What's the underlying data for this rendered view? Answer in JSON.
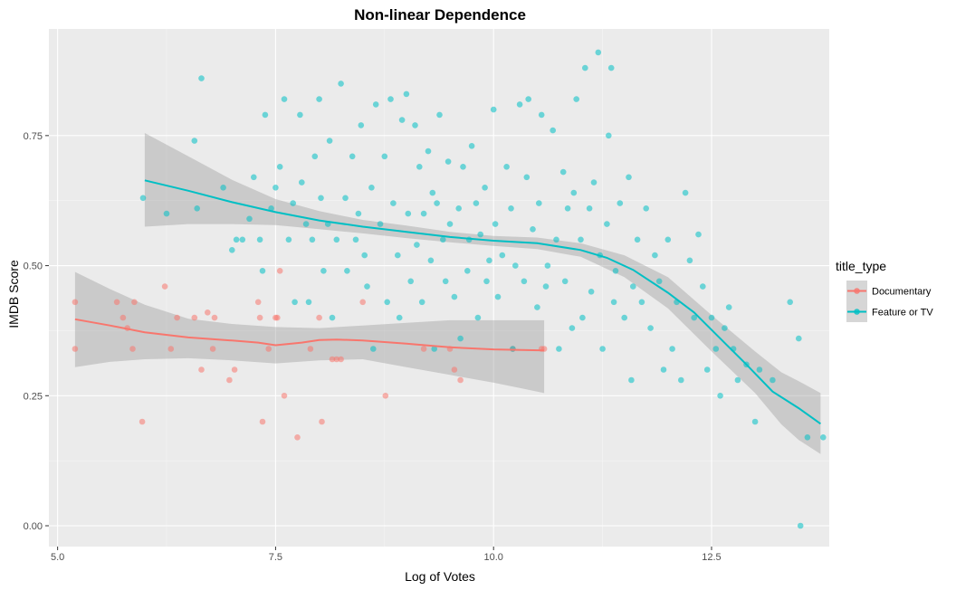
{
  "chart_data": {
    "type": "scatter",
    "title": "Non-linear Dependence",
    "xlabel": "Log of Votes",
    "ylabel": "IMDB Score",
    "xlim": [
      4.9,
      13.85
    ],
    "ylim": [
      -0.04,
      0.955
    ],
    "x_ticks": [
      5.0,
      7.5,
      10.0,
      12.5
    ],
    "x_tick_labels": [
      "5.0",
      "7.5",
      "10.0",
      "12.5"
    ],
    "y_ticks": [
      0.0,
      0.25,
      0.5,
      0.75
    ],
    "y_tick_labels": [
      "0.00",
      "0.25",
      "0.50",
      "0.75"
    ],
    "grid": true,
    "legend": {
      "title": "title_type",
      "placement": "right"
    },
    "series": [
      {
        "name": "Documentary",
        "color": "#F8766D",
        "points": [
          [
            5.2,
            0.43
          ],
          [
            5.2,
            0.34
          ],
          [
            5.68,
            0.43
          ],
          [
            5.75,
            0.4
          ],
          [
            5.8,
            0.38
          ],
          [
            5.86,
            0.34
          ],
          [
            5.88,
            0.43
          ],
          [
            5.97,
            0.2
          ],
          [
            6.23,
            0.46
          ],
          [
            6.3,
            0.34
          ],
          [
            6.37,
            0.4
          ],
          [
            6.57,
            0.4
          ],
          [
            6.65,
            0.3
          ],
          [
            6.72,
            0.41
          ],
          [
            6.78,
            0.34
          ],
          [
            6.8,
            0.4
          ],
          [
            6.97,
            0.28
          ],
          [
            7.03,
            0.3
          ],
          [
            7.3,
            0.43
          ],
          [
            7.32,
            0.4
          ],
          [
            7.35,
            0.2
          ],
          [
            7.42,
            0.34
          ],
          [
            7.5,
            0.4
          ],
          [
            7.52,
            0.4
          ],
          [
            7.55,
            0.49
          ],
          [
            7.6,
            0.25
          ],
          [
            7.75,
            0.17
          ],
          [
            7.9,
            0.34
          ],
          [
            8.0,
            0.4
          ],
          [
            8.03,
            0.2
          ],
          [
            8.15,
            0.32
          ],
          [
            8.2,
            0.32
          ],
          [
            8.25,
            0.32
          ],
          [
            8.5,
            0.43
          ],
          [
            8.76,
            0.25
          ],
          [
            9.2,
            0.34
          ],
          [
            9.5,
            0.34
          ],
          [
            9.55,
            0.3
          ],
          [
            9.62,
            0.28
          ],
          [
            10.22,
            0.34
          ],
          [
            10.55,
            0.34
          ],
          [
            10.58,
            0.34
          ]
        ],
        "trend": [
          [
            5.2,
            0.397
          ],
          [
            5.6,
            0.385
          ],
          [
            6.0,
            0.372
          ],
          [
            6.5,
            0.362
          ],
          [
            7.0,
            0.356
          ],
          [
            7.3,
            0.352
          ],
          [
            7.5,
            0.347
          ],
          [
            7.8,
            0.352
          ],
          [
            8.0,
            0.357
          ],
          [
            8.2,
            0.358
          ],
          [
            8.5,
            0.356
          ],
          [
            9.0,
            0.35
          ],
          [
            9.5,
            0.343
          ],
          [
            10.0,
            0.339
          ],
          [
            10.58,
            0.337
          ]
        ],
        "band_upper": [
          [
            5.2,
            0.488
          ],
          [
            5.6,
            0.455
          ],
          [
            6.0,
            0.425
          ],
          [
            6.5,
            0.398
          ],
          [
            7.0,
            0.388
          ],
          [
            7.5,
            0.382
          ],
          [
            8.0,
            0.38
          ],
          [
            8.5,
            0.385
          ],
          [
            9.0,
            0.39
          ],
          [
            9.5,
            0.395
          ],
          [
            10.0,
            0.395
          ],
          [
            10.3,
            0.395
          ],
          [
            10.58,
            0.395
          ]
        ],
        "band_lower": [
          [
            5.2,
            0.305
          ],
          [
            5.6,
            0.315
          ],
          [
            6.0,
            0.32
          ],
          [
            6.5,
            0.322
          ],
          [
            7.0,
            0.318
          ],
          [
            7.5,
            0.312
          ],
          [
            8.0,
            0.318
          ],
          [
            8.5,
            0.32
          ],
          [
            9.0,
            0.305
          ],
          [
            9.5,
            0.29
          ],
          [
            10.0,
            0.275
          ],
          [
            10.3,
            0.265
          ],
          [
            10.58,
            0.255
          ]
        ]
      },
      {
        "name": "Feature or TV",
        "color": "#00BFC4",
        "points": [
          [
            5.98,
            0.63
          ],
          [
            6.25,
            0.6
          ],
          [
            6.57,
            0.74
          ],
          [
            6.6,
            0.61
          ],
          [
            6.65,
            0.86
          ],
          [
            6.9,
            0.65
          ],
          [
            7.0,
            0.53
          ],
          [
            7.05,
            0.55
          ],
          [
            7.12,
            0.55
          ],
          [
            7.2,
            0.59
          ],
          [
            7.25,
            0.67
          ],
          [
            7.32,
            0.55
          ],
          [
            7.35,
            0.49
          ],
          [
            7.38,
            0.79
          ],
          [
            7.45,
            0.61
          ],
          [
            7.5,
            0.65
          ],
          [
            7.55,
            0.69
          ],
          [
            7.6,
            0.82
          ],
          [
            7.65,
            0.55
          ],
          [
            7.7,
            0.62
          ],
          [
            7.72,
            0.43
          ],
          [
            7.78,
            0.79
          ],
          [
            7.8,
            0.66
          ],
          [
            7.85,
            0.58
          ],
          [
            7.88,
            0.43
          ],
          [
            7.92,
            0.55
          ],
          [
            7.95,
            0.71
          ],
          [
            8.0,
            0.82
          ],
          [
            8.02,
            0.63
          ],
          [
            8.05,
            0.49
          ],
          [
            8.1,
            0.58
          ],
          [
            8.12,
            0.74
          ],
          [
            8.15,
            0.4
          ],
          [
            8.2,
            0.55
          ],
          [
            8.25,
            0.85
          ],
          [
            8.3,
            0.63
          ],
          [
            8.32,
            0.49
          ],
          [
            8.38,
            0.71
          ],
          [
            8.42,
            0.55
          ],
          [
            8.45,
            0.6
          ],
          [
            8.48,
            0.77
          ],
          [
            8.52,
            0.52
          ],
          [
            8.55,
            0.46
          ],
          [
            8.6,
            0.65
          ],
          [
            8.62,
            0.34
          ],
          [
            8.65,
            0.81
          ],
          [
            8.7,
            0.58
          ],
          [
            8.75,
            0.71
          ],
          [
            8.78,
            0.43
          ],
          [
            8.82,
            0.82
          ],
          [
            8.85,
            0.62
          ],
          [
            8.9,
            0.52
          ],
          [
            8.92,
            0.4
          ],
          [
            8.95,
            0.78
          ],
          [
            9.0,
            0.83
          ],
          [
            9.02,
            0.6
          ],
          [
            9.05,
            0.47
          ],
          [
            9.1,
            0.77
          ],
          [
            9.12,
            0.54
          ],
          [
            9.15,
            0.69
          ],
          [
            9.18,
            0.43
          ],
          [
            9.2,
            0.6
          ],
          [
            9.25,
            0.72
          ],
          [
            9.28,
            0.51
          ],
          [
            9.3,
            0.64
          ],
          [
            9.32,
            0.34
          ],
          [
            9.35,
            0.62
          ],
          [
            9.38,
            0.79
          ],
          [
            9.42,
            0.55
          ],
          [
            9.45,
            0.47
          ],
          [
            9.48,
            0.7
          ],
          [
            9.5,
            0.58
          ],
          [
            9.55,
            0.44
          ],
          [
            9.6,
            0.61
          ],
          [
            9.62,
            0.36
          ],
          [
            9.65,
            0.69
          ],
          [
            9.7,
            0.49
          ],
          [
            9.72,
            0.55
          ],
          [
            9.75,
            0.73
          ],
          [
            9.8,
            0.62
          ],
          [
            9.82,
            0.4
          ],
          [
            9.85,
            0.56
          ],
          [
            9.9,
            0.65
          ],
          [
            9.92,
            0.47
          ],
          [
            9.95,
            0.51
          ],
          [
            10.0,
            0.8
          ],
          [
            10.02,
            0.58
          ],
          [
            10.05,
            0.44
          ],
          [
            10.1,
            0.52
          ],
          [
            10.15,
            0.69
          ],
          [
            10.2,
            0.61
          ],
          [
            10.22,
            0.34
          ],
          [
            10.25,
            0.5
          ],
          [
            10.3,
            0.81
          ],
          [
            10.35,
            0.47
          ],
          [
            10.38,
            0.67
          ],
          [
            10.4,
            0.82
          ],
          [
            10.45,
            0.57
          ],
          [
            10.5,
            0.42
          ],
          [
            10.52,
            0.62
          ],
          [
            10.55,
            0.79
          ],
          [
            10.6,
            0.46
          ],
          [
            10.62,
            0.5
          ],
          [
            10.68,
            0.76
          ],
          [
            10.72,
            0.55
          ],
          [
            10.75,
            0.34
          ],
          [
            10.8,
            0.68
          ],
          [
            10.82,
            0.47
          ],
          [
            10.85,
            0.61
          ],
          [
            10.9,
            0.38
          ],
          [
            10.92,
            0.64
          ],
          [
            10.95,
            0.82
          ],
          [
            11.0,
            0.55
          ],
          [
            11.02,
            0.4
          ],
          [
            11.05,
            0.88
          ],
          [
            11.1,
            0.61
          ],
          [
            11.12,
            0.45
          ],
          [
            11.15,
            0.66
          ],
          [
            11.2,
            0.91
          ],
          [
            11.22,
            0.52
          ],
          [
            11.25,
            0.34
          ],
          [
            11.3,
            0.58
          ],
          [
            11.32,
            0.75
          ],
          [
            11.35,
            0.88
          ],
          [
            11.38,
            0.43
          ],
          [
            11.4,
            0.49
          ],
          [
            11.45,
            0.62
          ],
          [
            11.5,
            0.4
          ],
          [
            11.55,
            0.67
          ],
          [
            11.58,
            0.28
          ],
          [
            11.6,
            0.46
          ],
          [
            11.65,
            0.55
          ],
          [
            11.7,
            0.43
          ],
          [
            11.75,
            0.61
          ],
          [
            11.8,
            0.38
          ],
          [
            11.85,
            0.52
          ],
          [
            11.9,
            0.47
          ],
          [
            11.95,
            0.3
          ],
          [
            12.0,
            0.55
          ],
          [
            12.05,
            0.34
          ],
          [
            12.1,
            0.43
          ],
          [
            12.15,
            0.28
          ],
          [
            12.2,
            0.64
          ],
          [
            12.25,
            0.51
          ],
          [
            12.3,
            0.4
          ],
          [
            12.35,
            0.56
          ],
          [
            12.4,
            0.46
          ],
          [
            12.45,
            0.3
          ],
          [
            12.5,
            0.4
          ],
          [
            12.55,
            0.34
          ],
          [
            12.6,
            0.25
          ],
          [
            12.65,
            0.38
          ],
          [
            12.7,
            0.42
          ],
          [
            12.75,
            0.34
          ],
          [
            12.8,
            0.28
          ],
          [
            12.9,
            0.31
          ],
          [
            13.0,
            0.2
          ],
          [
            13.05,
            0.3
          ],
          [
            13.2,
            0.28
          ],
          [
            13.4,
            0.43
          ],
          [
            13.5,
            0.36
          ],
          [
            13.52,
            0.0
          ],
          [
            13.6,
            0.17
          ],
          [
            13.78,
            0.17
          ]
        ],
        "trend": [
          [
            6.0,
            0.664
          ],
          [
            6.5,
            0.644
          ],
          [
            7.0,
            0.622
          ],
          [
            7.5,
            0.603
          ],
          [
            8.0,
            0.587
          ],
          [
            8.5,
            0.575
          ],
          [
            9.0,
            0.565
          ],
          [
            9.5,
            0.555
          ],
          [
            10.0,
            0.548
          ],
          [
            10.5,
            0.543
          ],
          [
            11.0,
            0.53
          ],
          [
            11.3,
            0.515
          ],
          [
            11.6,
            0.492
          ],
          [
            12.0,
            0.448
          ],
          [
            12.3,
            0.41
          ],
          [
            12.6,
            0.36
          ],
          [
            12.9,
            0.31
          ],
          [
            13.2,
            0.258
          ],
          [
            13.5,
            0.226
          ],
          [
            13.75,
            0.196
          ]
        ],
        "band_upper": [
          [
            6.0,
            0.755
          ],
          [
            6.5,
            0.71
          ],
          [
            7.0,
            0.665
          ],
          [
            7.5,
            0.628
          ],
          [
            8.0,
            0.605
          ],
          [
            8.5,
            0.588
          ],
          [
            9.0,
            0.577
          ],
          [
            9.5,
            0.565
          ],
          [
            10.0,
            0.557
          ],
          [
            10.5,
            0.554
          ],
          [
            11.0,
            0.543
          ],
          [
            11.5,
            0.52
          ],
          [
            12.0,
            0.478
          ],
          [
            12.5,
            0.405
          ],
          [
            13.0,
            0.335
          ],
          [
            13.3,
            0.295
          ],
          [
            13.5,
            0.278
          ],
          [
            13.75,
            0.255
          ]
        ],
        "band_lower": [
          [
            6.0,
            0.575
          ],
          [
            6.5,
            0.58
          ],
          [
            7.0,
            0.58
          ],
          [
            7.5,
            0.578
          ],
          [
            8.0,
            0.57
          ],
          [
            8.5,
            0.562
          ],
          [
            9.0,
            0.553
          ],
          [
            9.5,
            0.545
          ],
          [
            10.0,
            0.538
          ],
          [
            10.5,
            0.532
          ],
          [
            11.0,
            0.517
          ],
          [
            11.5,
            0.478
          ],
          [
            12.0,
            0.418
          ],
          [
            12.5,
            0.335
          ],
          [
            13.0,
            0.255
          ],
          [
            13.3,
            0.195
          ],
          [
            13.5,
            0.165
          ],
          [
            13.75,
            0.138
          ]
        ]
      }
    ]
  }
}
